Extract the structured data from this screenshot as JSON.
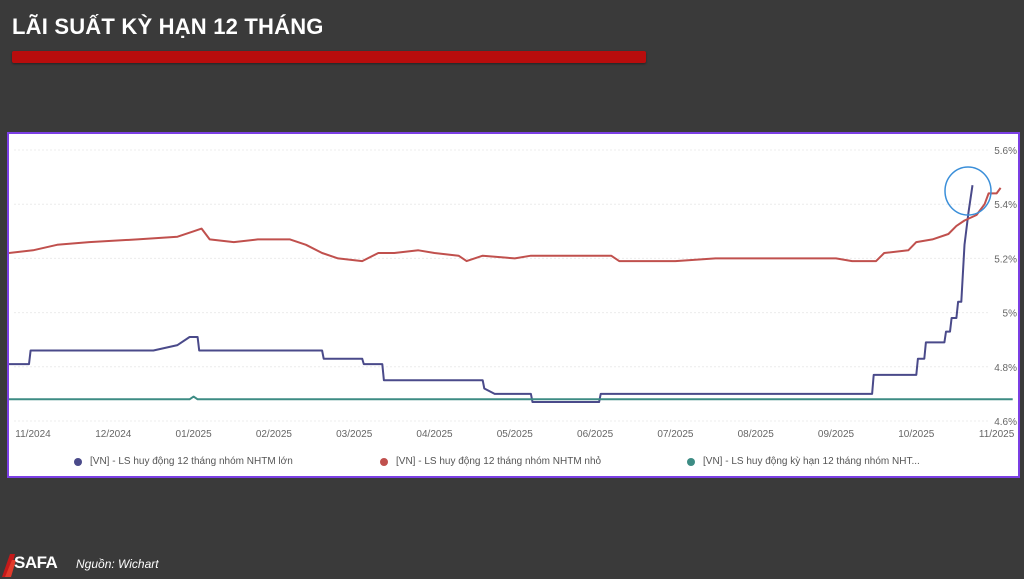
{
  "header": {
    "title": "LÃI SUẤT KỲ HẠN 12 THÁNG"
  },
  "footer": {
    "logo_text": "SAFA",
    "source": "Nguồn: Wichart"
  },
  "colors": {
    "background": "#3a3a3a",
    "title_bar": "#b80d0d",
    "frame": "#7b3fe4",
    "series_large": "#4a4a8a",
    "series_small": "#c0504d",
    "series_term": "#3d8c84",
    "highlight_circle": "#3b8fd9"
  },
  "chart_data": {
    "type": "line",
    "title": "",
    "xlabel": "",
    "ylabel": "",
    "y_axis_position": "right",
    "ylim": [
      4.6,
      5.6
    ],
    "y_ticks": [
      "4.6%",
      "4.8%",
      "5%",
      "5.2%",
      "5.4%",
      "5.6%"
    ],
    "y_tick_values": [
      4.6,
      4.8,
      5.0,
      5.2,
      5.4,
      5.6
    ],
    "x_ticks": [
      "11/2024",
      "12/2024",
      "01/2025",
      "02/2025",
      "03/2025",
      "04/2025",
      "05/2025",
      "06/2025",
      "07/2025",
      "08/2025",
      "09/2025",
      "10/2025",
      "11/2025"
    ],
    "grid": "horizontal",
    "legend_position": "bottom",
    "series": [
      {
        "name": "[VN] - LS huy động 12 tháng nhóm NHTM lớn",
        "points": [
          [
            -0.3,
            4.81
          ],
          [
            -0.05,
            4.81
          ],
          [
            -0.03,
            4.86
          ],
          [
            1.5,
            4.86
          ],
          [
            1.8,
            4.88
          ],
          [
            1.95,
            4.91
          ],
          [
            2.05,
            4.91
          ],
          [
            2.07,
            4.86
          ],
          [
            3.6,
            4.86
          ],
          [
            3.62,
            4.83
          ],
          [
            4.1,
            4.83
          ],
          [
            4.12,
            4.81
          ],
          [
            4.35,
            4.81
          ],
          [
            4.37,
            4.75
          ],
          [
            5.6,
            4.75
          ],
          [
            5.62,
            4.72
          ],
          [
            5.75,
            4.7
          ],
          [
            6.2,
            4.7
          ],
          [
            6.22,
            4.67
          ],
          [
            7.05,
            4.67
          ],
          [
            7.07,
            4.7
          ],
          [
            10.45,
            4.7
          ],
          [
            10.47,
            4.77
          ],
          [
            11.0,
            4.77
          ],
          [
            11.02,
            4.83
          ],
          [
            11.1,
            4.83
          ],
          [
            11.12,
            4.89
          ],
          [
            11.35,
            4.89
          ],
          [
            11.37,
            4.93
          ],
          [
            11.42,
            4.93
          ],
          [
            11.44,
            4.98
          ],
          [
            11.5,
            4.98
          ],
          [
            11.52,
            5.04
          ],
          [
            11.56,
            5.04
          ],
          [
            11.6,
            5.25
          ],
          [
            11.65,
            5.37
          ],
          [
            11.7,
            5.47
          ]
        ]
      },
      {
        "name": "[VN] - LS huy động 12 tháng nhóm NHTM nhỏ",
        "points": [
          [
            -0.3,
            5.22
          ],
          [
            0.0,
            5.23
          ],
          [
            0.3,
            5.25
          ],
          [
            0.7,
            5.26
          ],
          [
            1.3,
            5.27
          ],
          [
            1.8,
            5.28
          ],
          [
            2.0,
            5.3
          ],
          [
            2.1,
            5.31
          ],
          [
            2.2,
            5.27
          ],
          [
            2.5,
            5.26
          ],
          [
            2.8,
            5.27
          ],
          [
            3.2,
            5.27
          ],
          [
            3.4,
            5.25
          ],
          [
            3.6,
            5.22
          ],
          [
            3.8,
            5.2
          ],
          [
            4.1,
            5.19
          ],
          [
            4.3,
            5.22
          ],
          [
            4.5,
            5.22
          ],
          [
            4.8,
            5.23
          ],
          [
            5.0,
            5.22
          ],
          [
            5.3,
            5.21
          ],
          [
            5.4,
            5.19
          ],
          [
            5.6,
            5.21
          ],
          [
            6.0,
            5.2
          ],
          [
            6.2,
            5.21
          ],
          [
            6.5,
            5.21
          ],
          [
            6.8,
            5.21
          ],
          [
            7.0,
            5.21
          ],
          [
            7.2,
            5.21
          ],
          [
            7.3,
            5.19
          ],
          [
            8.0,
            5.19
          ],
          [
            8.5,
            5.2
          ],
          [
            9.0,
            5.2
          ],
          [
            9.5,
            5.2
          ],
          [
            10.0,
            5.2
          ],
          [
            10.2,
            5.19
          ],
          [
            10.5,
            5.19
          ],
          [
            10.6,
            5.22
          ],
          [
            10.9,
            5.23
          ],
          [
            11.0,
            5.26
          ],
          [
            11.2,
            5.27
          ],
          [
            11.4,
            5.29
          ],
          [
            11.5,
            5.32
          ],
          [
            11.6,
            5.34
          ],
          [
            11.75,
            5.36
          ],
          [
            11.85,
            5.4
          ],
          [
            11.9,
            5.44
          ],
          [
            12.0,
            5.44
          ],
          [
            12.05,
            5.46
          ]
        ]
      },
      {
        "name": "[VN] - LS huy động kỳ hạn 12 tháng nhóm NHT...",
        "points": [
          [
            -0.3,
            4.68
          ],
          [
            1.95,
            4.68
          ],
          [
            2.0,
            4.69
          ],
          [
            2.05,
            4.68
          ],
          [
            12.2,
            4.68
          ]
        ]
      }
    ]
  }
}
